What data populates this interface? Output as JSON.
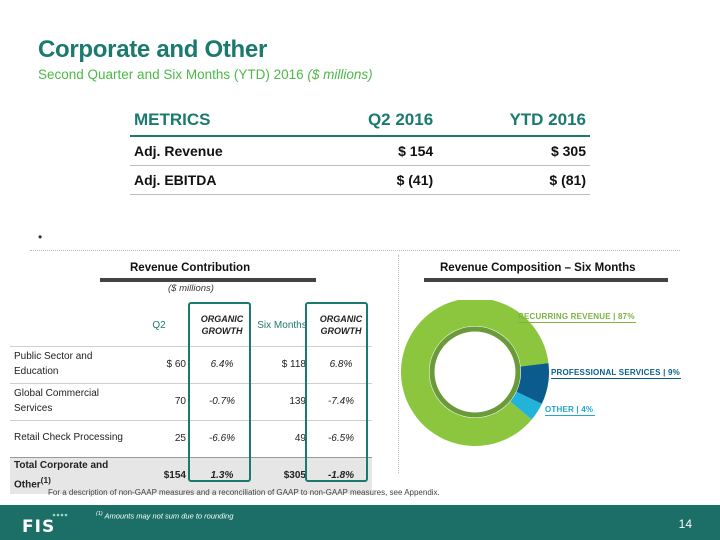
{
  "header": {
    "title": "Corporate and Other",
    "subtitle_main": "Second Quarter and Six Months (YTD) 2016 ",
    "subtitle_italic": "($ millions)"
  },
  "metrics": {
    "headers": [
      "METRICS",
      "Q2 2016",
      "YTD 2016"
    ],
    "rows": [
      {
        "label": "Adj. Revenue",
        "q2": "$ 154",
        "ytd": "$  305"
      },
      {
        "label": "Adj. EBITDA",
        "q2": "$ (41)",
        "ytd": "$ (81)"
      }
    ]
  },
  "bullet": "•",
  "revenue_contribution": {
    "title": "Revenue Contribution",
    "units": "($ millions)",
    "headers": [
      "Q2",
      "ORGANIC GROWTH",
      "Six Months",
      "ORGANIC GROWTH"
    ],
    "rows": [
      {
        "name": "Public Sector and Education",
        "q2": "$  60",
        "og_q2": "6.4%",
        "six": "$  118",
        "og_six": "6.8%"
      },
      {
        "name": "Global Commercial Services",
        "q2": "70",
        "og_q2": "-0.7%",
        "six": "139",
        "og_six": "-7.4%"
      },
      {
        "name": "Retail Check Processing",
        "q2": "25",
        "og_q2": "-6.6%",
        "six": "49",
        "og_six": "-6.5%"
      }
    ],
    "total": {
      "name": "Total Corporate and Other",
      "name_sup": "(1)",
      "q2": "$154",
      "og_q2": "1.3%",
      "six": "$305",
      "og_six": "-1.8%"
    }
  },
  "revenue_composition": {
    "title": "Revenue Composition – Six Months",
    "chart_data": {
      "type": "pie",
      "categories": [
        "RECURRING REVENUE",
        "PROFESSIONAL SERVICES",
        "OTHER"
      ],
      "values": [
        87,
        9,
        4
      ],
      "labels": [
        "RECURRING REVENUE | 87%",
        "PROFESSIONAL SERVICES | 9%",
        "OTHER | 4%"
      ],
      "colors": [
        "#8cc63f",
        "#0b5c8c",
        "#22b3d8"
      ]
    }
  },
  "footer": {
    "gaap_note": "For a description of non-GAAP measures and a reconciliation of GAAP to non-GAAP measures, see Appendix.",
    "rounding_sup": "(1)",
    "rounding_note": " Amounts may not sum due to rounding",
    "page_number": "14",
    "logo_text": "FIS"
  }
}
